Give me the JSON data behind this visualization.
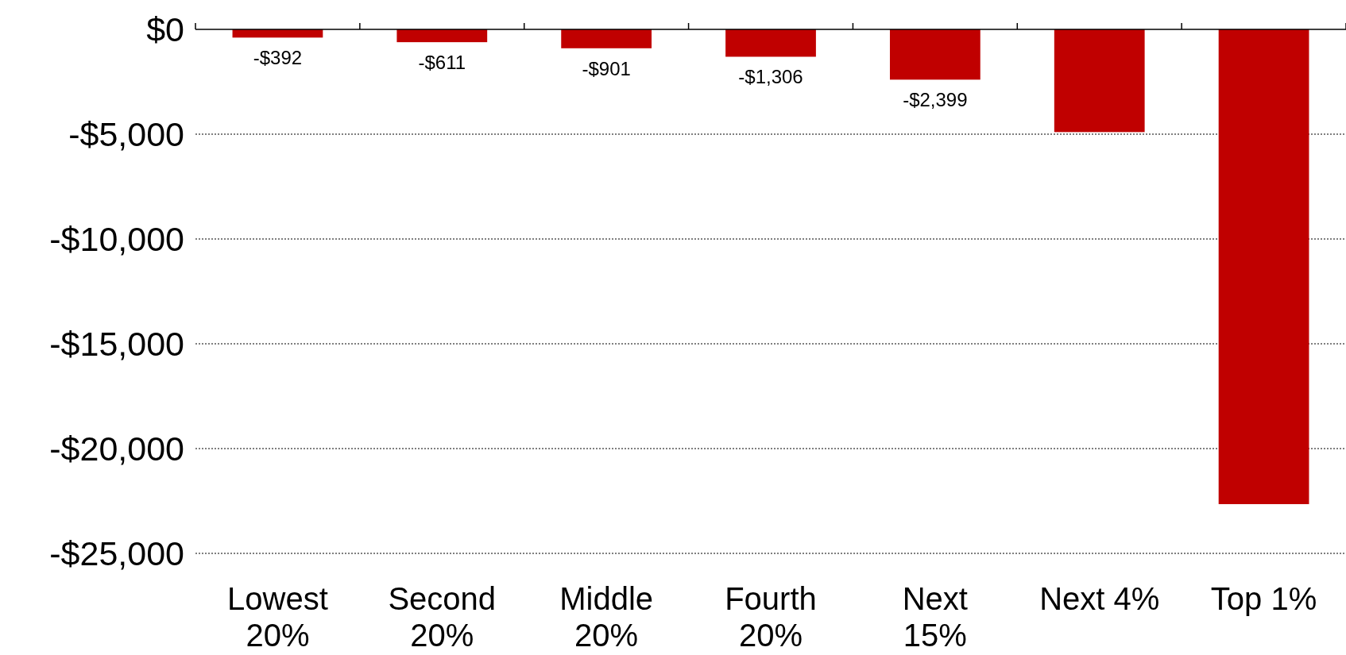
{
  "chart_data": {
    "type": "bar",
    "categories": [
      "Lowest\n20%",
      "Second\n20%",
      "Middle\n20%",
      "Fourth\n20%",
      "Next\n15%",
      "Next 4%",
      "Top 1%"
    ],
    "values": [
      -392,
      -611,
      -901,
      -1306,
      -2399,
      -4900,
      -22650
    ],
    "value_labels": [
      "-$392",
      "-$611",
      "-$901",
      "-$1,306",
      "-$2,399",
      null,
      null
    ],
    "color": "#c00000",
    "ylim": [
      -25000,
      0
    ],
    "yticks": [
      {
        "value": 0,
        "label": "$0"
      },
      {
        "value": -5000,
        "label": "-$5,000"
      },
      {
        "value": -10000,
        "label": "-$10,000"
      },
      {
        "value": -15000,
        "label": "-$15,000"
      },
      {
        "value": -20000,
        "label": "-$20,000"
      },
      {
        "value": -25000,
        "label": "-$25,000"
      }
    ],
    "grid": "y"
  }
}
